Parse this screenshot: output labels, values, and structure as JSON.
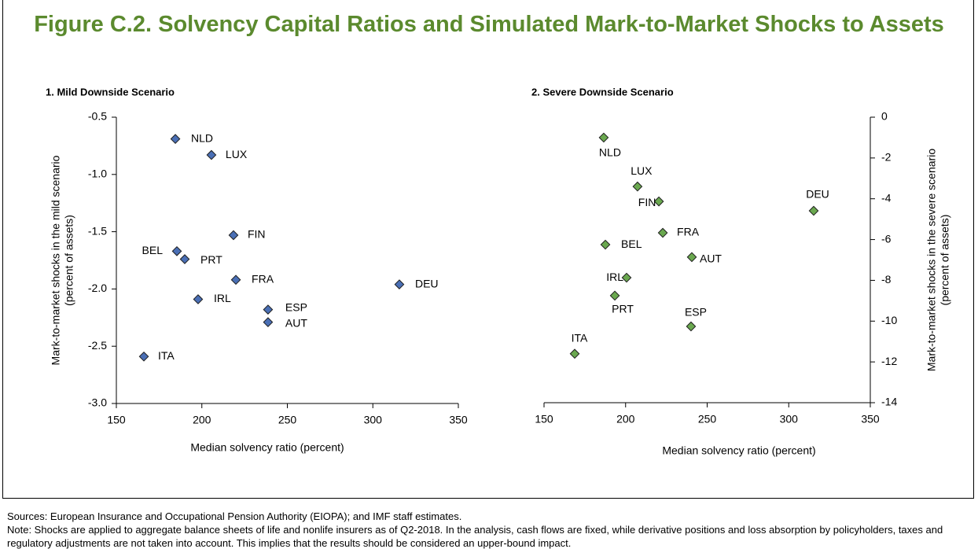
{
  "title": "Figure C.2. Solvency Capital Ratios and Simulated Mark-to-Market Shocks to Assets",
  "chart_data": [
    {
      "type": "scatter",
      "title": "1. Mild Downside Scenario",
      "x_label": "Median solvency ratio (percent)",
      "y_label": [
        "Mark-to-market shocks in the mild scenario",
        "(percent of assets)"
      ],
      "color": "#4a6fb5",
      "labels": [
        "NLD",
        "LUX",
        "FIN",
        "BEL",
        "PRT",
        "FRA",
        "DEU",
        "IRL",
        "ESP",
        "AUT",
        "ITA"
      ],
      "x": [
        184.5,
        205.6,
        218.5,
        185.4,
        190,
        219.9,
        315.5,
        197.8,
        238.7,
        238.7,
        166.1
      ],
      "y": [
        -0.69,
        -0.83,
        -1.53,
        -1.67,
        -1.74,
        -1.92,
        -1.96,
        -2.09,
        -2.18,
        -2.29,
        -2.59
      ],
      "xlim": [
        150,
        350
      ],
      "xticks": [
        150,
        200,
        250,
        300,
        350
      ],
      "ylim": [
        -3,
        -0.5
      ],
      "yticks": [
        -0.5,
        {
          "value": -1,
          "label": "-1.0"
        },
        -1.5,
        {
          "value": -2,
          "label": "-2.0"
        },
        -2.5,
        {
          "value": -3,
          "label": "-3.0"
        }
      ],
      "y_axis_side": "left"
    },
    {
      "type": "scatter",
      "title": "2. Severe Downside Scenario",
      "x_label": "Median solvency ratio (percent)",
      "y_label": [
        "Mark-to-market shocks in the severe scenario",
        "(percent of assets)"
      ],
      "color": "#6aa84f",
      "labels": [
        "NLD",
        "LUX",
        "FIN",
        "DEU",
        "FRA",
        "BEL",
        "AUT",
        "IRL",
        "PRT",
        "ESP",
        "ITA"
      ],
      "x": [
        186.6,
        207.3,
        220.4,
        315.3,
        222.8,
        187.6,
        240.6,
        200.6,
        193.4,
        240.1,
        168.8
      ],
      "y": [
        -1.0,
        -3.4,
        -4.13,
        -4.59,
        -5.67,
        -6.25,
        -6.86,
        -7.87,
        -8.75,
        -10.26,
        -11.6
      ],
      "xlim": [
        150,
        350
      ],
      "xticks": [
        150,
        200,
        250,
        300,
        350
      ],
      "ylim": [
        -14,
        0
      ],
      "yticks": [
        0,
        -2,
        -4,
        -6,
        -8,
        -10,
        -12,
        -14
      ],
      "y_axis_side": "right"
    }
  ],
  "sources": "Sources: European Insurance and Occupational Pension Authority (EIOPA); and IMF staff estimates.",
  "note": "Note: Shocks are applied to aggregate balance sheets of life and nonlife insurers as of Q2-2018. In the analysis, cash flows are fixed, while derivative positions and loss absorption by policyholders, taxes and regulatory adjustments are not taken into account. This implies that the results should be considered an upper-bound impact."
}
